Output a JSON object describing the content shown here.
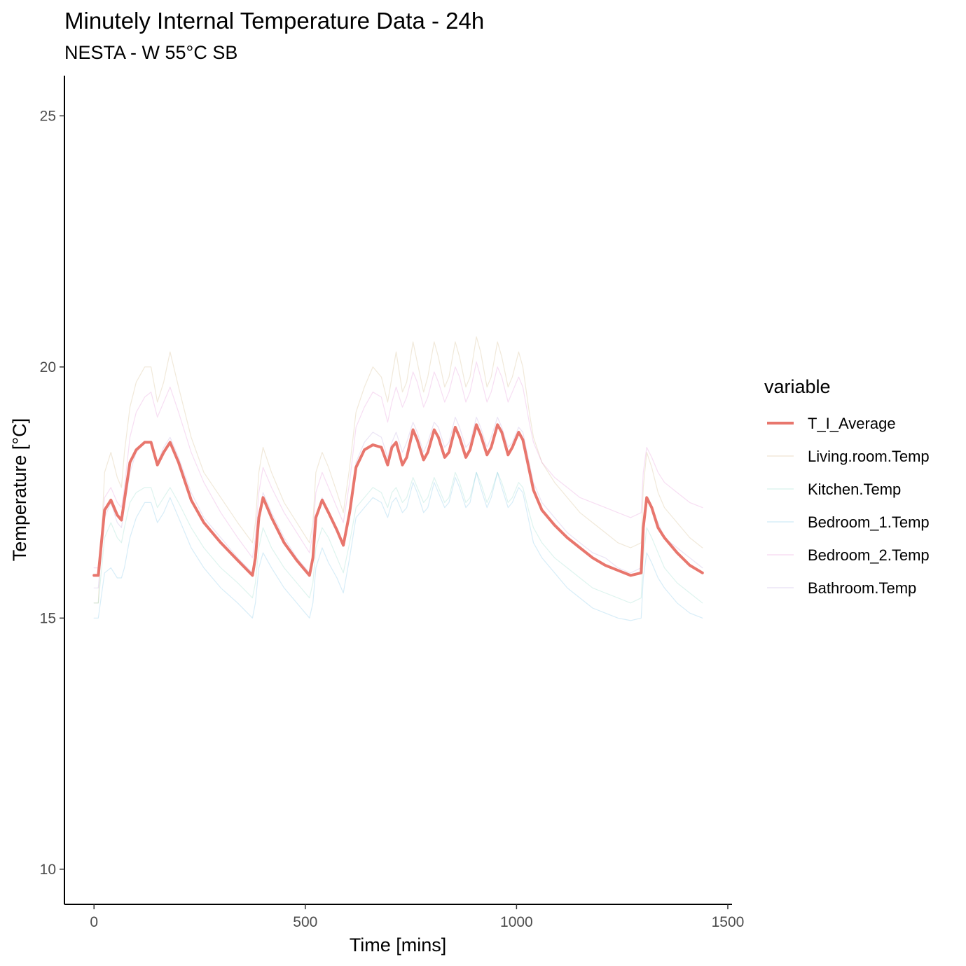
{
  "chart_data": {
    "type": "line",
    "title": "Minutely Internal Temperature Data - 24h",
    "subtitle": "NESTA - W 55°C SB",
    "xlabel": "Time [mins]",
    "ylabel": "Temperature [°C]",
    "xlim": [
      -70,
      1510
    ],
    "ylim": [
      9.3,
      25.8
    ],
    "xticks": [
      0,
      500,
      1000,
      1500
    ],
    "yticks": [
      10,
      15,
      20,
      25
    ],
    "grid": false,
    "legend": {
      "title": "variable",
      "position": "right"
    },
    "series": [
      {
        "name": "T_I_Average",
        "color": "#e8766d",
        "emphasis": "bold",
        "x": [
          0,
          10,
          25,
          40,
          55,
          65,
          72,
          85,
          100,
          120,
          135,
          150,
          165,
          180,
          200,
          230,
          260,
          300,
          340,
          375,
          382,
          390,
          400,
          420,
          450,
          480,
          510,
          518,
          525,
          540,
          555,
          575,
          590,
          605,
          620,
          640,
          660,
          680,
          695,
          705,
          715,
          730,
          740,
          755,
          765,
          780,
          790,
          805,
          815,
          830,
          840,
          855,
          865,
          880,
          890,
          905,
          915,
          930,
          940,
          955,
          965,
          980,
          990,
          1005,
          1015,
          1030,
          1040,
          1060,
          1090,
          1120,
          1150,
          1180,
          1210,
          1240,
          1270,
          1295,
          1300,
          1308,
          1320,
          1335,
          1350,
          1380,
          1410,
          1440
        ],
        "y": [
          15.85,
          15.85,
          17.15,
          17.35,
          17.05,
          16.95,
          17.35,
          18.1,
          18.35,
          18.5,
          18.5,
          18.05,
          18.3,
          18.5,
          18.1,
          17.35,
          16.9,
          16.5,
          16.15,
          15.85,
          16.2,
          17.0,
          17.4,
          17.0,
          16.5,
          16.15,
          15.85,
          16.2,
          17.0,
          17.35,
          17.1,
          16.75,
          16.45,
          17.1,
          18.0,
          18.35,
          18.45,
          18.4,
          18.05,
          18.4,
          18.5,
          18.05,
          18.2,
          18.75,
          18.55,
          18.15,
          18.3,
          18.75,
          18.6,
          18.2,
          18.3,
          18.8,
          18.6,
          18.2,
          18.35,
          18.85,
          18.65,
          18.25,
          18.4,
          18.85,
          18.7,
          18.25,
          18.4,
          18.7,
          18.55,
          17.95,
          17.55,
          17.15,
          16.85,
          16.6,
          16.4,
          16.2,
          16.05,
          15.95,
          15.85,
          15.9,
          16.8,
          17.4,
          17.2,
          16.8,
          16.6,
          16.3,
          16.05,
          15.9
        ]
      },
      {
        "name": "Living.room.Temp",
        "color": "#c9a66b",
        "x": [
          0,
          10,
          25,
          40,
          55,
          65,
          72,
          85,
          100,
          120,
          135,
          150,
          165,
          180,
          200,
          230,
          260,
          300,
          340,
          375,
          382,
          390,
          400,
          420,
          450,
          480,
          510,
          518,
          525,
          540,
          555,
          575,
          590,
          605,
          620,
          640,
          660,
          680,
          695,
          705,
          715,
          730,
          740,
          755,
          765,
          780,
          790,
          805,
          815,
          830,
          840,
          855,
          865,
          880,
          890,
          905,
          915,
          930,
          940,
          955,
          965,
          980,
          990,
          1005,
          1015,
          1030,
          1040,
          1060,
          1090,
          1120,
          1150,
          1180,
          1210,
          1240,
          1270,
          1295,
          1300,
          1308,
          1320,
          1335,
          1350,
          1380,
          1410,
          1440
        ],
        "y": [
          15.3,
          15.3,
          17.9,
          18.3,
          17.8,
          17.6,
          18.3,
          19.2,
          19.7,
          20.0,
          20.0,
          19.3,
          19.7,
          20.3,
          19.6,
          18.6,
          17.9,
          17.4,
          16.9,
          16.5,
          16.9,
          17.9,
          18.4,
          17.9,
          17.3,
          16.9,
          16.5,
          16.9,
          17.9,
          18.3,
          18.0,
          17.5,
          17.1,
          18.0,
          19.1,
          19.6,
          20.0,
          19.8,
          19.3,
          19.8,
          20.3,
          19.5,
          19.7,
          20.5,
          20.1,
          19.5,
          19.8,
          20.5,
          20.2,
          19.6,
          19.8,
          20.5,
          20.2,
          19.6,
          19.8,
          20.6,
          20.3,
          19.6,
          19.8,
          20.5,
          20.2,
          19.6,
          19.8,
          20.3,
          20.0,
          19.1,
          18.6,
          18.1,
          17.7,
          17.4,
          17.1,
          16.9,
          16.7,
          16.5,
          16.4,
          16.5,
          17.6,
          18.3,
          18.0,
          17.5,
          17.2,
          16.9,
          16.6,
          16.4
        ]
      },
      {
        "name": "Kitchen.Temp",
        "color": "#7dd3c0",
        "x": [
          0,
          10,
          25,
          40,
          55,
          65,
          72,
          85,
          100,
          120,
          135,
          150,
          165,
          180,
          200,
          230,
          260,
          300,
          340,
          375,
          382,
          390,
          400,
          420,
          450,
          480,
          510,
          518,
          525,
          540,
          555,
          575,
          590,
          605,
          620,
          640,
          660,
          680,
          695,
          705,
          715,
          730,
          740,
          755,
          765,
          780,
          790,
          805,
          815,
          830,
          840,
          855,
          865,
          880,
          890,
          905,
          915,
          930,
          940,
          955,
          965,
          980,
          990,
          1005,
          1015,
          1030,
          1040,
          1060,
          1090,
          1120,
          1150,
          1180,
          1210,
          1240,
          1270,
          1295,
          1300,
          1308,
          1320,
          1335,
          1350,
          1380,
          1410,
          1440
        ],
        "y": [
          15.3,
          15.3,
          16.6,
          16.9,
          16.6,
          16.5,
          16.8,
          17.3,
          17.5,
          17.6,
          17.6,
          17.2,
          17.4,
          17.6,
          17.3,
          16.8,
          16.4,
          16.0,
          15.7,
          15.4,
          15.7,
          16.4,
          16.8,
          16.4,
          16.0,
          15.7,
          15.4,
          15.7,
          16.4,
          16.8,
          16.6,
          16.2,
          15.9,
          16.5,
          17.2,
          17.4,
          17.6,
          17.5,
          17.2,
          17.5,
          17.6,
          17.3,
          17.4,
          17.8,
          17.6,
          17.3,
          17.4,
          17.8,
          17.6,
          17.3,
          17.4,
          17.9,
          17.7,
          17.3,
          17.4,
          17.9,
          17.7,
          17.3,
          17.5,
          17.9,
          17.7,
          17.3,
          17.4,
          17.7,
          17.6,
          17.1,
          16.8,
          16.5,
          16.2,
          16.0,
          15.8,
          15.6,
          15.5,
          15.4,
          15.3,
          15.4,
          16.2,
          16.8,
          16.6,
          16.3,
          16.0,
          15.7,
          15.5,
          15.3
        ]
      },
      {
        "name": "Bedroom_1.Temp",
        "color": "#5fb9e3",
        "x": [
          0,
          10,
          25,
          40,
          55,
          65,
          72,
          85,
          100,
          120,
          135,
          150,
          165,
          180,
          200,
          230,
          260,
          300,
          340,
          375,
          382,
          390,
          400,
          420,
          450,
          480,
          510,
          518,
          525,
          540,
          555,
          575,
          590,
          605,
          620,
          640,
          660,
          680,
          695,
          705,
          715,
          730,
          740,
          755,
          765,
          780,
          790,
          805,
          815,
          830,
          840,
          855,
          865,
          880,
          890,
          905,
          915,
          930,
          940,
          955,
          965,
          980,
          990,
          1005,
          1015,
          1030,
          1040,
          1060,
          1090,
          1120,
          1150,
          1180,
          1210,
          1240,
          1270,
          1295,
          1300,
          1308,
          1320,
          1335,
          1350,
          1380,
          1410,
          1440
        ],
        "y": [
          15.0,
          15.0,
          15.9,
          16.0,
          15.8,
          15.8,
          16.0,
          16.6,
          17.0,
          17.3,
          17.3,
          16.9,
          17.1,
          17.4,
          17.0,
          16.4,
          16.0,
          15.6,
          15.3,
          15.0,
          15.3,
          16.0,
          16.3,
          16.0,
          15.6,
          15.3,
          15.0,
          15.3,
          16.0,
          16.4,
          16.1,
          15.8,
          15.5,
          16.2,
          17.0,
          17.2,
          17.4,
          17.3,
          17.0,
          17.3,
          17.4,
          17.1,
          17.2,
          17.7,
          17.5,
          17.1,
          17.2,
          17.7,
          17.5,
          17.2,
          17.3,
          17.8,
          17.6,
          17.2,
          17.3,
          17.9,
          17.6,
          17.2,
          17.4,
          17.9,
          17.6,
          17.2,
          17.3,
          17.6,
          17.5,
          16.9,
          16.5,
          16.2,
          15.9,
          15.6,
          15.4,
          15.2,
          15.1,
          15.0,
          14.95,
          15.0,
          15.8,
          16.3,
          16.1,
          15.8,
          15.6,
          15.3,
          15.1,
          15.0
        ]
      },
      {
        "name": "Bedroom_2.Temp",
        "color": "#e07ad1",
        "x": [
          0,
          10,
          25,
          40,
          55,
          65,
          72,
          85,
          100,
          120,
          135,
          150,
          165,
          180,
          200,
          230,
          260,
          300,
          340,
          375,
          382,
          390,
          400,
          420,
          450,
          480,
          510,
          518,
          525,
          540,
          555,
          575,
          590,
          605,
          620,
          640,
          660,
          680,
          695,
          705,
          715,
          730,
          740,
          755,
          765,
          780,
          790,
          805,
          815,
          830,
          840,
          855,
          865,
          880,
          890,
          905,
          915,
          930,
          940,
          955,
          965,
          980,
          990,
          1005,
          1015,
          1030,
          1040,
          1060,
          1090,
          1120,
          1150,
          1180,
          1210,
          1240,
          1270,
          1295,
          1300,
          1308,
          1320,
          1335,
          1350,
          1380,
          1410,
          1440
        ],
        "y": [
          16.0,
          16.0,
          17.4,
          17.6,
          17.3,
          17.2,
          17.6,
          18.6,
          19.1,
          19.4,
          19.5,
          19.0,
          19.3,
          19.6,
          19.1,
          18.3,
          17.7,
          17.1,
          16.6,
          16.2,
          16.6,
          17.5,
          18.0,
          17.6,
          17.1,
          16.7,
          16.3,
          16.7,
          17.5,
          17.9,
          17.6,
          17.2,
          16.9,
          17.7,
          18.8,
          19.2,
          19.5,
          19.4,
          18.9,
          19.3,
          19.6,
          19.2,
          19.4,
          19.9,
          19.7,
          19.2,
          19.4,
          19.9,
          19.7,
          19.3,
          19.5,
          20.0,
          19.8,
          19.3,
          19.5,
          20.1,
          19.8,
          19.3,
          19.5,
          20.0,
          19.8,
          19.3,
          19.5,
          19.8,
          19.6,
          18.9,
          18.5,
          18.1,
          17.8,
          17.6,
          17.4,
          17.3,
          17.2,
          17.1,
          17.0,
          17.1,
          17.9,
          18.4,
          18.2,
          17.9,
          17.7,
          17.5,
          17.3,
          17.2
        ]
      },
      {
        "name": "Bathroom.Temp",
        "color": "#b094d8",
        "x": [
          0,
          10,
          25,
          40,
          55,
          65,
          72,
          85,
          100,
          120,
          135,
          150,
          165,
          180,
          200,
          230,
          260,
          300,
          340,
          375,
          382,
          390,
          400,
          420,
          450,
          480,
          510,
          518,
          525,
          540,
          555,
          575,
          590,
          605,
          620,
          640,
          660,
          680,
          695,
          705,
          715,
          730,
          740,
          755,
          765,
          780,
          790,
          805,
          815,
          830,
          840,
          855,
          865,
          880,
          890,
          905,
          915,
          930,
          940,
          955,
          965,
          980,
          990,
          1005,
          1015,
          1030,
          1040,
          1060,
          1090,
          1120,
          1150,
          1180,
          1210,
          1240,
          1270,
          1295,
          1300,
          1308,
          1320,
          1335,
          1350,
          1380,
          1410,
          1440
        ],
        "y": [
          15.6,
          15.6,
          17.0,
          17.3,
          16.9,
          16.8,
          17.2,
          17.9,
          18.3,
          18.5,
          18.5,
          18.1,
          18.4,
          18.6,
          18.2,
          17.5,
          17.0,
          16.6,
          16.2,
          15.9,
          16.2,
          17.0,
          17.5,
          17.1,
          16.6,
          16.2,
          15.9,
          16.2,
          17.0,
          17.4,
          17.1,
          16.8,
          16.5,
          17.2,
          18.1,
          18.5,
          18.7,
          18.6,
          18.2,
          18.5,
          18.7,
          18.3,
          18.5,
          18.9,
          18.7,
          18.3,
          18.5,
          18.9,
          18.8,
          18.4,
          18.5,
          19.0,
          18.8,
          18.4,
          18.5,
          19.0,
          18.8,
          18.4,
          18.6,
          19.0,
          18.8,
          18.4,
          18.5,
          18.8,
          18.7,
          18.1,
          17.7,
          17.3,
          17.0,
          16.7,
          16.5,
          16.3,
          16.2,
          16.0,
          15.9,
          16.0,
          16.8,
          17.4,
          17.2,
          16.9,
          16.6,
          16.4,
          16.2,
          16.0
        ]
      }
    ]
  }
}
